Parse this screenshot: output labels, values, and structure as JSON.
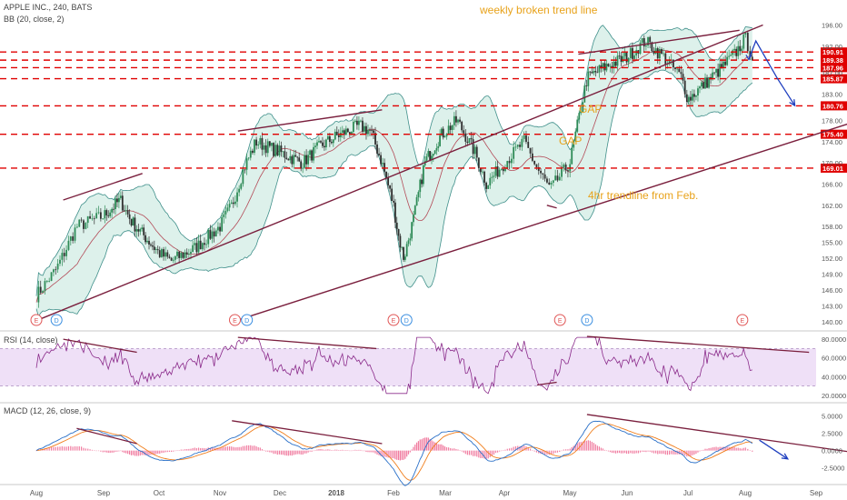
{
  "header": {
    "symbol": "APPLE INC., 240, BATS",
    "bb_label": "BB (20, close, 2)",
    "rsi_label": "RSI (14, close)",
    "macd_label": "MACD (12, 26, close, 9)"
  },
  "annotations": {
    "weekly": "weekly broken trend line",
    "gap1": "GAP",
    "gap2": "GAP",
    "trend4h": "4hr trendline from Feb."
  },
  "colors": {
    "candle_up": "#2e8b57",
    "candle_down": "#2f2f2f",
    "trendline": "#7a1f3d",
    "bb_fill": "#d9efe9",
    "bb_band": "#3f8f8a",
    "bb_mid": "#b34a57",
    "dashed_level": "#e00000",
    "annotation": "#e8a21a",
    "projection": "#1f3fbf",
    "rsi_line": "#8a2a8a",
    "rsi_band": "#efe0f7",
    "macd_line": "#2a70c8",
    "signal_line": "#f07d1a",
    "histogram": "#f07ca0",
    "event_E": "#e05656",
    "event_D": "#3a8ee0"
  },
  "chart_data": {
    "type": "candlestick",
    "x_months": [
      "Aug",
      "Sep",
      "Oct",
      "Nov",
      "Dec",
      "2018",
      "Feb",
      "Mar",
      "Apr",
      "May",
      "Jun",
      "Jul",
      "Aug",
      "Sep"
    ],
    "price_axis": {
      "ticks": [
        140.0,
        143.0,
        146.0,
        149.0,
        152.0,
        155.0,
        158.0,
        162.0,
        166.0,
        170.0,
        174.0,
        178.0,
        183.0,
        187.0,
        192.0,
        196.0
      ],
      "ylim": [
        139,
        199
      ]
    },
    "levels": [
      190.91,
      189.38,
      187.96,
      185.87,
      180.76,
      175.4,
      169.01
    ],
    "price_path": [
      [
        0,
        145.0
      ],
      [
        0.3,
        150.0
      ],
      [
        0.6,
        158.0
      ],
      [
        1.0,
        160.0
      ],
      [
        1.3,
        163.0
      ],
      [
        1.5,
        159.0
      ],
      [
        2.0,
        153.0
      ],
      [
        2.2,
        151.5
      ],
      [
        2.6,
        154.0
      ],
      [
        3.0,
        158.0
      ],
      [
        3.2,
        162.0
      ],
      [
        3.4,
        169.0
      ],
      [
        3.6,
        174.0
      ],
      [
        4.0,
        172.0
      ],
      [
        4.4,
        170.0
      ],
      [
        4.7,
        173.0
      ],
      [
        5.0,
        175.0
      ],
      [
        5.4,
        177.0
      ],
      [
        5.6,
        176.0
      ],
      [
        5.8,
        170.0
      ],
      [
        6.0,
        162.0
      ],
      [
        6.1,
        156.0
      ],
      [
        6.2,
        152.0
      ],
      [
        6.4,
        160.0
      ],
      [
        6.6,
        170.0
      ],
      [
        6.9,
        175.0
      ],
      [
        7.2,
        178.0
      ],
      [
        7.5,
        172.0
      ],
      [
        7.7,
        166.0
      ],
      [
        8.0,
        170.0
      ],
      [
        8.3,
        174.0
      ],
      [
        8.5,
        169.0
      ],
      [
        8.7,
        165.0
      ],
      [
        9.0,
        170.0
      ],
      [
        9.15,
        178.0
      ],
      [
        9.3,
        186.0
      ],
      [
        9.6,
        188.0
      ],
      [
        10.0,
        190.0
      ],
      [
        10.3,
        193.0
      ],
      [
        10.6,
        190.0
      ],
      [
        10.9,
        186.0
      ],
      [
        11.0,
        182.0
      ],
      [
        11.3,
        185.0
      ],
      [
        11.6,
        188.0
      ],
      [
        11.85,
        191.0
      ],
      [
        12.0,
        193.5
      ],
      [
        12.1,
        190.0
      ]
    ],
    "trendlines": [
      {
        "points": [
          [
            -0.05,
            140.0
          ],
          [
            12.25,
            196.0
          ]
        ],
        "note": "weekly broken trend line"
      },
      {
        "points": [
          [
            3.2,
            140.0
          ],
          [
            13.6,
            177.5
          ]
        ],
        "note": "4hr trendline from Feb."
      },
      {
        "points": [
          [
            0.4,
            163.0
          ],
          [
            1.7,
            168.0
          ]
        ],
        "note": ""
      },
      {
        "points": [
          [
            3.3,
            176.0
          ],
          [
            5.8,
            180.0
          ]
        ],
        "note": ""
      },
      {
        "points": [
          [
            9.15,
            190.5
          ],
          [
            11.9,
            195.0
          ]
        ],
        "note": ""
      },
      {
        "points": [
          [
            8.65,
            162.0
          ],
          [
            8.8,
            161.5
          ]
        ],
        "note": ""
      }
    ],
    "projection": [
      [
        12.05,
        189.5
      ],
      [
        12.15,
        193.0
      ],
      [
        12.45,
        186.0
      ],
      [
        12.7,
        180.8
      ]
    ],
    "events": [
      {
        "x": 0.0,
        "label": "E"
      },
      {
        "x": 0.3,
        "label": "D"
      },
      {
        "x": 3.25,
        "label": "E"
      },
      {
        "x": 3.45,
        "label": "D"
      },
      {
        "x": 6.0,
        "label": "E"
      },
      {
        "x": 6.25,
        "label": "D"
      },
      {
        "x": 8.85,
        "label": "E"
      },
      {
        "x": 9.3,
        "label": "D"
      },
      {
        "x": 11.95,
        "label": "E"
      }
    ],
    "rsi": {
      "ticks": [
        20.0,
        40.0,
        60.0,
        80.0
      ],
      "ylim": [
        15,
        85
      ],
      "band": [
        30,
        70
      ],
      "divergence_lines": [
        [
          [
            0.4,
            80.0
          ],
          [
            1.6,
            66.0
          ]
        ],
        [
          [
            3.3,
            82.0
          ],
          [
            5.7,
            70.0
          ]
        ],
        [
          [
            8.5,
            31.0
          ],
          [
            8.8,
            34.0
          ]
        ],
        [
          [
            9.3,
            83.0
          ],
          [
            12.9,
            66.0
          ]
        ]
      ]
    },
    "macd": {
      "ticks": [
        -2.5,
        0.0,
        2.5,
        5.0
      ],
      "ylim": [
        -4.5,
        6.5
      ],
      "divergence_lines": [
        [
          [
            0.6,
            3.2
          ],
          [
            1.6,
            1.0
          ]
        ],
        [
          [
            3.2,
            4.3
          ],
          [
            5.8,
            1.0
          ]
        ],
        [
          [
            9.3,
            5.2
          ],
          [
            13.6,
            -0.2
          ]
        ]
      ],
      "projection": [
        [
          12.2,
          1.5
        ],
        [
          12.6,
          -1.2
        ]
      ]
    }
  }
}
